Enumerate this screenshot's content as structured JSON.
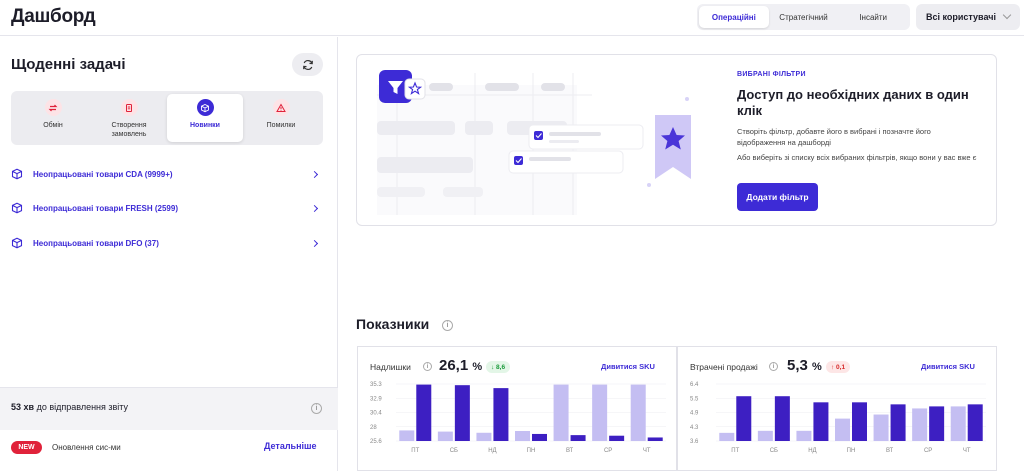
{
  "header": {
    "title": "Дашборд",
    "tabs": [
      {
        "label": "Операційні",
        "active": true
      },
      {
        "label": "Стратегічний",
        "active": false
      },
      {
        "label": "Інсайти",
        "active": false
      }
    ],
    "users_select": "Всі користувачі"
  },
  "tasks": {
    "title": "Щоденні задачі",
    "refresh_icon": "refresh-icon",
    "tabs": [
      {
        "label": "Обмін",
        "icon": "exchange-icon",
        "active": false
      },
      {
        "label": "Створення замовлень",
        "icon": "document-icon",
        "active": false
      },
      {
        "label": "Новинки",
        "icon": "box-icon",
        "active": true
      },
      {
        "label": "Помилки",
        "icon": "warning-icon",
        "active": false
      }
    ],
    "items": [
      {
        "label": "Неопрацьовані товари CDA (9999+)"
      },
      {
        "label": "Неопрацьовані товари FRESH (2599)"
      },
      {
        "label": "Неопрацьовані товари DFO (37)"
      }
    ],
    "report": {
      "time": "53 хв",
      "text": "до відправлення звіту"
    },
    "update": {
      "badge": "NEW",
      "text": "Оновлення сис-ми",
      "link": "Детальніше"
    }
  },
  "promo": {
    "kicker": "ВИБРАНІ ФІЛЬТРИ",
    "title": "Доступ до необхідних даних в один клік",
    "desc1": "Створіть фільтр, добавте його в вибрані і позначте його відображення на дашборді",
    "desc2": "Або виберіть зі списку всіх вибраних фільтрів, якщо вони у вас вже є",
    "button": "Додати фільтр"
  },
  "metrics": {
    "title": "Показники",
    "cards": [
      {
        "name": "Надлишки",
        "value": "26,1",
        "unit": "%",
        "delta": "↓ 8,6",
        "delta_type": "good",
        "link": "Дивитися SKU"
      },
      {
        "name": "Втрачені продажі",
        "value": "5,3",
        "unit": "%",
        "delta": "↑ 0,1",
        "delta_type": "bad",
        "link": "Дивитися SKU"
      }
    ]
  },
  "colors": {
    "accent": "#3d2bd6",
    "light_bar": "#c4bef2",
    "dark_bar": "#3d1fc2"
  },
  "chart_data": [
    {
      "type": "bar",
      "categories": [
        "ПТ",
        "СБ",
        "НД",
        "ПН",
        "ВТ",
        "СР",
        "ЧТ"
      ],
      "y_ticks": [
        "35.3",
        "32.9",
        "30.4",
        "28",
        "25.6"
      ],
      "ylim": [
        25.6,
        35.3
      ],
      "series": [
        {
          "values": [
            27.4,
            27.2,
            27.0,
            27.3,
            35.2,
            35.2,
            35.2
          ]
        },
        {
          "values": [
            35.2,
            35.1,
            34.6,
            26.8,
            26.6,
            26.5,
            26.2
          ]
        }
      ]
    },
    {
      "type": "bar",
      "categories": [
        "ПТ",
        "СБ",
        "НД",
        "ПН",
        "ВТ",
        "СР",
        "ЧТ"
      ],
      "y_ticks": [
        "6.4",
        "5.5",
        "4.9",
        "4.3",
        "3.6"
      ],
      "ylim": [
        3.6,
        6.4
      ],
      "series": [
        {
          "values": [
            4.0,
            4.1,
            4.1,
            4.7,
            4.9,
            5.2,
            5.3
          ]
        },
        {
          "values": [
            5.8,
            5.8,
            5.5,
            5.5,
            5.4,
            5.3,
            5.4
          ]
        }
      ]
    }
  ]
}
